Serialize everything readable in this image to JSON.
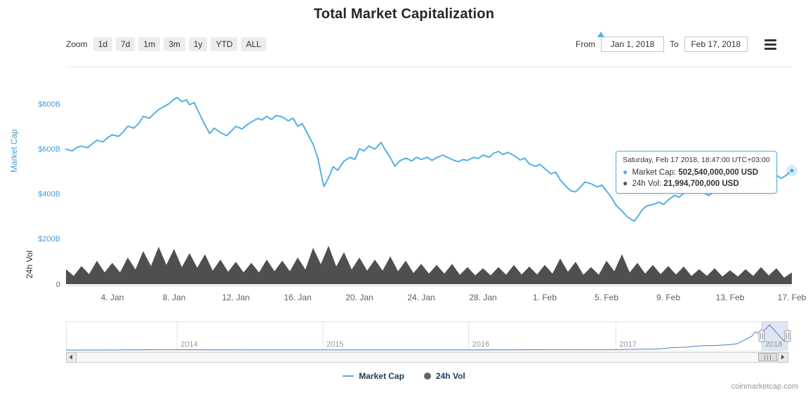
{
  "title": "Total Market Capitalization",
  "toolbar": {
    "zoom_label": "Zoom",
    "zoom_buttons": [
      "1d",
      "7d",
      "1m",
      "3m",
      "1y",
      "YTD",
      "ALL"
    ],
    "from_label": "From",
    "from_value": "Jan 1, 2018",
    "to_label": "To",
    "to_value": "Feb 17, 2018"
  },
  "tooltip": {
    "header": "Saturday, Feb 17 2018, 18:47:00 UTC+03:00",
    "rows": [
      {
        "marker_color": "#54B0E4",
        "label": "Market Cap:",
        "value": "502,540,000,000 USD"
      },
      {
        "marker_color": "#555555",
        "label": "24h Vol:",
        "value": "21,994,700,000 USD"
      }
    ]
  },
  "legend": [
    {
      "type": "line",
      "color": "#54B0E4",
      "label": "Market Cap"
    },
    {
      "type": "circle",
      "color": "#666666",
      "label": "24h Vol"
    }
  ],
  "watermark": "coinmarketcap.com",
  "colors": {
    "market_cap_line": "#54B0E4",
    "volume_fill": "#4F4F4F",
    "price_axis_text": "#4E9CD3",
    "axis_text": "#606060",
    "navigator_line": "#4C7DBF"
  },
  "chart_data": {
    "type": "line",
    "title": "Total Market Capitalization",
    "x_unit": "days since Jan 1, 2018",
    "x_range": [
      0,
      47
    ],
    "y_axis_price": {
      "label": "Market Cap",
      "unit": "USD billions",
      "ticks": [
        {
          "value": 200,
          "label": "$200B"
        },
        {
          "value": 400,
          "label": "$400B"
        },
        {
          "value": 600,
          "label": "$600B"
        },
        {
          "value": 800,
          "label": "$800B"
        }
      ]
    },
    "y_axis_volume": {
      "label": "24h Vol",
      "unit": "USD billions",
      "ticks": [
        {
          "value": 0,
          "label": "0"
        }
      ]
    },
    "x_ticks": [
      {
        "day": 3,
        "label": "4. Jan"
      },
      {
        "day": 7,
        "label": "8. Jan"
      },
      {
        "day": 11,
        "label": "12. Jan"
      },
      {
        "day": 15,
        "label": "16. Jan"
      },
      {
        "day": 19,
        "label": "20. Jan"
      },
      {
        "day": 23,
        "label": "24. Jan"
      },
      {
        "day": 27,
        "label": "28. Jan"
      },
      {
        "day": 31,
        "label": "1. Feb"
      },
      {
        "day": 35,
        "label": "5. Feb"
      },
      {
        "day": 39,
        "label": "9. Feb"
      },
      {
        "day": 43,
        "label": "13. Feb"
      },
      {
        "day": 47,
        "label": "17. Feb"
      }
    ],
    "series": [
      {
        "name": "Market Cap",
        "type": "line",
        "color": "#54B0E4",
        "unit": "USD billions",
        "points": [
          [
            0,
            598
          ],
          [
            0.4,
            590
          ],
          [
            0.7,
            606
          ],
          [
            1,
            612
          ],
          [
            1.4,
            604
          ],
          [
            1.7,
            622
          ],
          [
            2,
            638
          ],
          [
            2.4,
            630
          ],
          [
            2.7,
            650
          ],
          [
            3,
            662
          ],
          [
            3.4,
            655
          ],
          [
            3.7,
            674
          ],
          [
            4,
            700
          ],
          [
            4.4,
            692
          ],
          [
            4.7,
            712
          ],
          [
            5,
            745
          ],
          [
            5.4,
            736
          ],
          [
            5.7,
            756
          ],
          [
            6,
            775
          ],
          [
            6.4,
            790
          ],
          [
            6.7,
            802
          ],
          [
            7,
            820
          ],
          [
            7.2,
            828
          ],
          [
            7.5,
            810
          ],
          [
            7.8,
            818
          ],
          [
            8,
            796
          ],
          [
            8.3,
            806
          ],
          [
            8.6,
            762
          ],
          [
            9,
            706
          ],
          [
            9.3,
            668
          ],
          [
            9.6,
            692
          ],
          [
            10,
            672
          ],
          [
            10.4,
            658
          ],
          [
            10.7,
            678
          ],
          [
            11,
            700
          ],
          [
            11.4,
            688
          ],
          [
            11.7,
            706
          ],
          [
            12,
            718
          ],
          [
            12.4,
            735
          ],
          [
            12.7,
            728
          ],
          [
            13,
            745
          ],
          [
            13.3,
            730
          ],
          [
            13.6,
            748
          ],
          [
            14,
            742
          ],
          [
            14.4,
            724
          ],
          [
            14.7,
            736
          ],
          [
            15,
            700
          ],
          [
            15.3,
            712
          ],
          [
            15.6,
            672
          ],
          [
            16,
            620
          ],
          [
            16.3,
            560
          ],
          [
            16.5,
            495
          ],
          [
            16.7,
            432
          ],
          [
            17,
            470
          ],
          [
            17.3,
            520
          ],
          [
            17.6,
            504
          ],
          [
            18,
            545
          ],
          [
            18.4,
            562
          ],
          [
            18.7,
            552
          ],
          [
            19,
            600
          ],
          [
            19.3,
            590
          ],
          [
            19.6,
            612
          ],
          [
            20,
            598
          ],
          [
            20.4,
            628
          ],
          [
            20.7,
            592
          ],
          [
            21,
            560
          ],
          [
            21.3,
            522
          ],
          [
            21.6,
            546
          ],
          [
            22,
            558
          ],
          [
            22.4,
            546
          ],
          [
            22.7,
            562
          ],
          [
            23,
            552
          ],
          [
            23.4,
            562
          ],
          [
            23.7,
            548
          ],
          [
            24,
            560
          ],
          [
            24.4,
            572
          ],
          [
            24.7,
            562
          ],
          [
            25,
            552
          ],
          [
            25.4,
            542
          ],
          [
            25.7,
            552
          ],
          [
            26,
            548
          ],
          [
            26.4,
            562
          ],
          [
            26.7,
            556
          ],
          [
            27,
            572
          ],
          [
            27.4,
            562
          ],
          [
            27.7,
            580
          ],
          [
            28,
            588
          ],
          [
            28.3,
            574
          ],
          [
            28.6,
            584
          ],
          [
            29,
            570
          ],
          [
            29.4,
            550
          ],
          [
            29.7,
            558
          ],
          [
            30,
            532
          ],
          [
            30.4,
            522
          ],
          [
            30.7,
            530
          ],
          [
            31,
            512
          ],
          [
            31.4,
            488
          ],
          [
            31.7,
            496
          ],
          [
            32,
            462
          ],
          [
            32.4,
            430
          ],
          [
            32.7,
            412
          ],
          [
            33,
            408
          ],
          [
            33.3,
            428
          ],
          [
            33.6,
            452
          ],
          [
            34,
            444
          ],
          [
            34.4,
            430
          ],
          [
            34.7,
            438
          ],
          [
            35,
            412
          ],
          [
            35.3,
            385
          ],
          [
            35.6,
            350
          ],
          [
            36,
            322
          ],
          [
            36.3,
            300
          ],
          [
            36.6,
            285
          ],
          [
            36.8,
            278
          ],
          [
            37,
            295
          ],
          [
            37.3,
            328
          ],
          [
            37.6,
            345
          ],
          [
            38,
            352
          ],
          [
            38.4,
            362
          ],
          [
            38.7,
            352
          ],
          [
            39,
            372
          ],
          [
            39.4,
            392
          ],
          [
            39.7,
            384
          ],
          [
            40,
            402
          ],
          [
            40.3,
            418
          ],
          [
            40.6,
            406
          ],
          [
            41,
            425
          ],
          [
            41.3,
            404
          ],
          [
            41.6,
            392
          ],
          [
            42,
            408
          ],
          [
            42.4,
            422
          ],
          [
            42.7,
            412
          ],
          [
            43,
            428
          ],
          [
            43.3,
            414
          ],
          [
            43.6,
            432
          ],
          [
            44,
            438
          ],
          [
            44.4,
            450
          ],
          [
            44.7,
            442
          ],
          [
            45,
            468
          ],
          [
            45.3,
            488
          ],
          [
            45.6,
            476
          ],
          [
            46,
            482
          ],
          [
            46.3,
            468
          ],
          [
            46.6,
            480
          ],
          [
            47,
            502.54
          ]
        ]
      },
      {
        "name": "24h Vol",
        "type": "area",
        "color": "#4F4F4F",
        "unit": "USD billions",
        "points": [
          [
            0,
            28
          ],
          [
            1,
            34
          ],
          [
            2,
            44
          ],
          [
            3,
            40
          ],
          [
            4,
            50
          ],
          [
            5,
            62
          ],
          [
            6,
            70
          ],
          [
            7,
            66
          ],
          [
            8,
            58
          ],
          [
            9,
            56
          ],
          [
            10,
            46
          ],
          [
            11,
            42
          ],
          [
            12,
            40
          ],
          [
            13,
            46
          ],
          [
            14,
            44
          ],
          [
            15,
            50
          ],
          [
            16,
            68
          ],
          [
            17,
            72
          ],
          [
            18,
            60
          ],
          [
            19,
            50
          ],
          [
            20,
            46
          ],
          [
            21,
            52
          ],
          [
            22,
            44
          ],
          [
            23,
            38
          ],
          [
            24,
            36
          ],
          [
            25,
            38
          ],
          [
            26,
            32
          ],
          [
            27,
            30
          ],
          [
            28,
            32
          ],
          [
            29,
            36
          ],
          [
            30,
            33
          ],
          [
            31,
            36
          ],
          [
            32,
            48
          ],
          [
            33,
            42
          ],
          [
            34,
            32
          ],
          [
            35,
            44
          ],
          [
            36,
            56
          ],
          [
            37,
            40
          ],
          [
            38,
            36
          ],
          [
            39,
            34
          ],
          [
            40,
            33
          ],
          [
            41,
            28
          ],
          [
            42,
            30
          ],
          [
            43,
            26
          ],
          [
            44,
            28
          ],
          [
            45,
            32
          ],
          [
            46,
            30
          ],
          [
            47,
            22
          ]
        ]
      }
    ],
    "last_point": {
      "market_cap_usd": "502,540,000,000",
      "vol_24h_usd": "21,994,700,000"
    }
  },
  "navigator": {
    "year_ticks": [
      {
        "f": 0.154,
        "label": "2014"
      },
      {
        "f": 0.356,
        "label": "2015"
      },
      {
        "f": 0.558,
        "label": "2016"
      },
      {
        "f": 0.762,
        "label": "2017"
      },
      {
        "f": 0.964,
        "label": "2018"
      }
    ],
    "series": [
      [
        0,
        1
      ],
      [
        0.05,
        2
      ],
      [
        0.1,
        10
      ],
      [
        0.13,
        14
      ],
      [
        0.154,
        13
      ],
      [
        0.2,
        9
      ],
      [
        0.25,
        8
      ],
      [
        0.3,
        6
      ],
      [
        0.356,
        5
      ],
      [
        0.4,
        4
      ],
      [
        0.45,
        4
      ],
      [
        0.5,
        5
      ],
      [
        0.558,
        7
      ],
      [
        0.6,
        9
      ],
      [
        0.65,
        12
      ],
      [
        0.7,
        13
      ],
      [
        0.762,
        17
      ],
      [
        0.78,
        22
      ],
      [
        0.8,
        28
      ],
      [
        0.82,
        35
      ],
      [
        0.84,
        80
      ],
      [
        0.86,
        100
      ],
      [
        0.88,
        140
      ],
      [
        0.9,
        150
      ],
      [
        0.92,
        180
      ],
      [
        0.93,
        210
      ],
      [
        0.94,
        330
      ],
      [
        0.95,
        450
      ],
      [
        0.955,
        600
      ],
      [
        0.96,
        560
      ],
      [
        0.964,
        600
      ],
      [
        0.97,
        700
      ],
      [
        0.975,
        828
      ],
      [
        0.98,
        700
      ],
      [
        0.985,
        560
      ],
      [
        0.99,
        430
      ],
      [
        0.995,
        300
      ],
      [
        1,
        502
      ]
    ],
    "selection": [
      0.964,
      1.0
    ]
  }
}
